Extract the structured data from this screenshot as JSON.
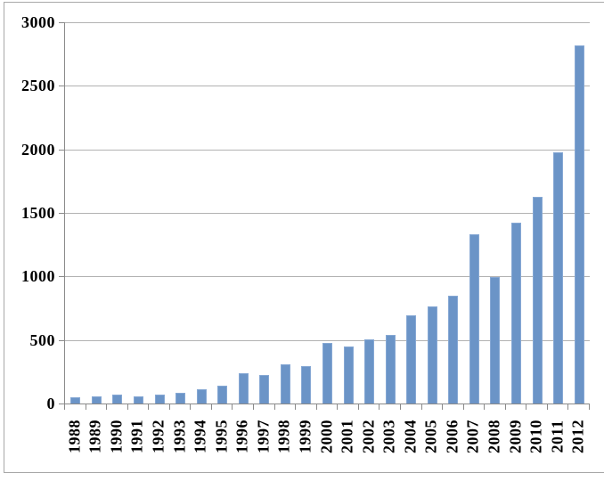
{
  "chart_data": {
    "type": "bar",
    "title": "",
    "xlabel": "",
    "ylabel": "",
    "categories": [
      "1988",
      "1989",
      "1990",
      "1991",
      "1992",
      "1993",
      "1994",
      "1995",
      "1996",
      "1997",
      "1998",
      "1999",
      "2000",
      "2001",
      "2002",
      "2003",
      "2004",
      "2005",
      "2006",
      "2007",
      "2008",
      "2009",
      "2010",
      "2011",
      "2012"
    ],
    "values": [
      50,
      55,
      70,
      55,
      68,
      85,
      110,
      140,
      235,
      225,
      310,
      295,
      480,
      450,
      505,
      540,
      695,
      765,
      850,
      1330,
      995,
      1420,
      1625,
      1980,
      2820
    ],
    "ylim": [
      0,
      3000
    ],
    "yticks": [
      0,
      500,
      1000,
      1500,
      2000,
      2500,
      3000
    ],
    "grid": true,
    "legend": false,
    "colors": {
      "bar_fill": "#6b94c7",
      "bar_border": "#86a8d4",
      "gridline": "#b2b2b2",
      "axis_line": "#8a8a8a",
      "frame_border": "#a8a8a8",
      "label_text": "#000000",
      "background": "#ffffff"
    }
  }
}
